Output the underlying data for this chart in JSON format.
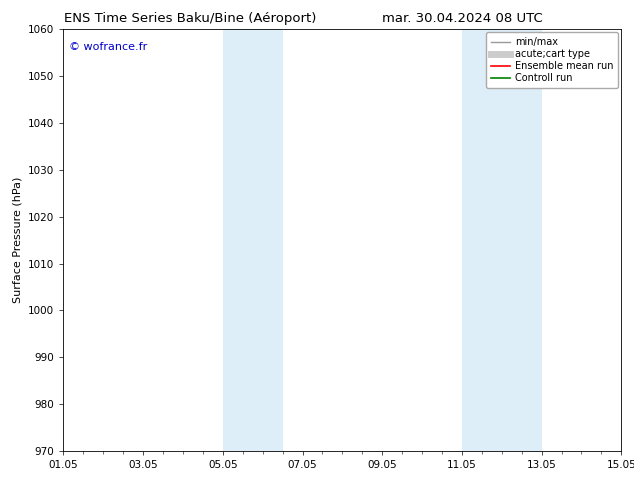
{
  "title_left": "ENS Time Series Baku/Bine (Aéroport)",
  "title_right": "mar. 30.04.2024 08 UTC",
  "ylabel": "Surface Pressure (hPa)",
  "ylim": [
    970,
    1060
  ],
  "yticks": [
    970,
    980,
    990,
    1000,
    1010,
    1020,
    1030,
    1040,
    1050,
    1060
  ],
  "xtick_labels": [
    "01.05",
    "03.05",
    "05.05",
    "07.05",
    "09.05",
    "11.05",
    "13.05",
    "15.05"
  ],
  "xtick_positions": [
    0,
    2,
    4,
    6,
    8,
    10,
    12,
    14
  ],
  "xlim": [
    0,
    14
  ],
  "shaded_bands": [
    {
      "x_start": 4.0,
      "x_end": 5.5,
      "color": "#ddeef8"
    },
    {
      "x_start": 10.0,
      "x_end": 12.0,
      "color": "#ddeef8"
    }
  ],
  "watermark": "© wofrance.fr",
  "watermark_color": "#0000cc",
  "legend_entries": [
    {
      "label": "min/max",
      "color": "#999999",
      "linestyle": "-",
      "linewidth": 1.0
    },
    {
      "label": "acute;cart type",
      "color": "#cccccc",
      "linestyle": "-",
      "linewidth": 5
    },
    {
      "label": "Ensemble mean run",
      "color": "#ff0000",
      "linestyle": "-",
      "linewidth": 1.2
    },
    {
      "label": "Controll run",
      "color": "#008000",
      "linestyle": "-",
      "linewidth": 1.2
    }
  ],
  "bg_color": "#ffffff",
  "plot_bg_color": "#ffffff",
  "title_fontsize": 9.5,
  "tick_fontsize": 7.5,
  "ylabel_fontsize": 8,
  "watermark_fontsize": 8,
  "legend_fontsize": 7
}
